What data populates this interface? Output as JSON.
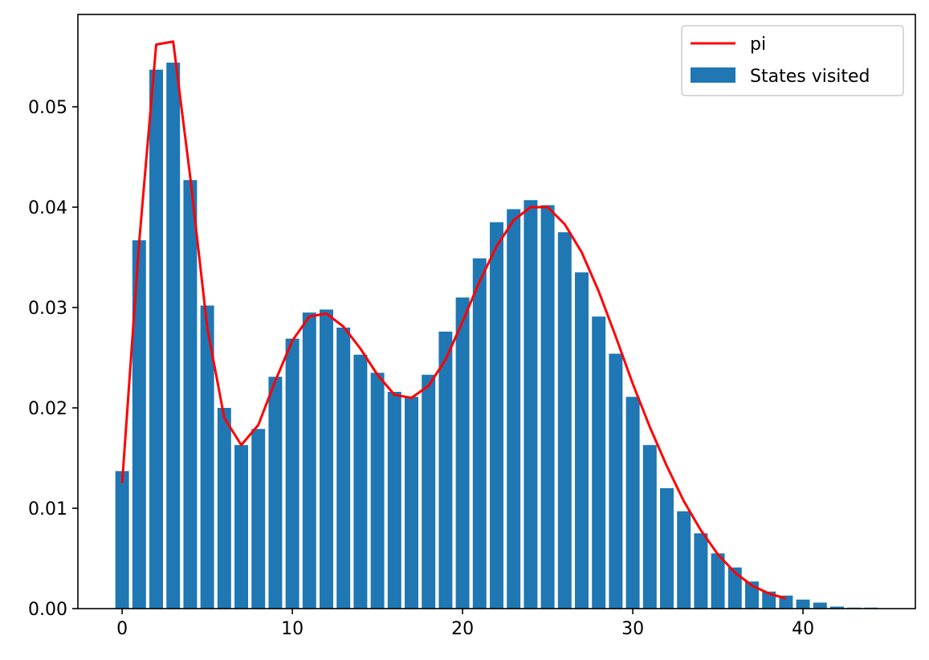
{
  "chart_data": {
    "type": "bar",
    "title": "",
    "xlabel": "",
    "ylabel": "",
    "xlim": [
      -2.6,
      46.6
    ],
    "ylim": [
      0,
      0.0592
    ],
    "x_ticks": [
      0,
      10,
      20,
      30,
      40
    ],
    "x_tick_labels": [
      "0",
      "10",
      "20",
      "30",
      "40"
    ],
    "y_ticks": [
      0,
      0.01,
      0.02,
      0.03,
      0.04,
      0.05
    ],
    "y_tick_labels": [
      "0.00",
      "0.01",
      "0.02",
      "0.03",
      "0.04",
      "0.05"
    ],
    "grid": false,
    "legend_position": "top-right",
    "series": [
      {
        "name": "pi",
        "kind": "line",
        "color": "#ff0000",
        "x": [
          0,
          1,
          2,
          3,
          4,
          5,
          6,
          7,
          8,
          9,
          10,
          11,
          12,
          13,
          14,
          15,
          16,
          17,
          18,
          19,
          20,
          21,
          22,
          23,
          24,
          25,
          26,
          27,
          28,
          29,
          30,
          31,
          32,
          33,
          34,
          35,
          36,
          37,
          38,
          39
        ],
        "values": [
          0.0125,
          0.0365,
          0.0562,
          0.0565,
          0.043,
          0.028,
          0.019,
          0.0163,
          0.0183,
          0.0227,
          0.0267,
          0.0291,
          0.0294,
          0.0281,
          0.0259,
          0.0233,
          0.0213,
          0.021,
          0.0222,
          0.0248,
          0.0286,
          0.0326,
          0.0361,
          0.0387,
          0.04,
          0.04,
          0.0383,
          0.0355,
          0.0316,
          0.0271,
          0.0224,
          0.0181,
          0.0142,
          0.0107,
          0.0078,
          0.0054,
          0.0036,
          0.0023,
          0.0015,
          0.001
        ]
      },
      {
        "name": "States visited",
        "kind": "bar",
        "color": "#1f77b4",
        "x": [
          0,
          1,
          2,
          3,
          4,
          5,
          6,
          7,
          8,
          9,
          10,
          11,
          12,
          13,
          14,
          15,
          16,
          17,
          18,
          19,
          20,
          21,
          22,
          23,
          24,
          25,
          26,
          27,
          28,
          29,
          30,
          31,
          32,
          33,
          34,
          35,
          36,
          37,
          38,
          39,
          40,
          41,
          42,
          43,
          44
        ],
        "values": [
          0.0137,
          0.0367,
          0.0537,
          0.0544,
          0.0427,
          0.0302,
          0.02,
          0.0163,
          0.0179,
          0.0231,
          0.0269,
          0.0295,
          0.0298,
          0.028,
          0.0253,
          0.0235,
          0.0216,
          0.0211,
          0.0233,
          0.0276,
          0.031,
          0.0349,
          0.0385,
          0.0398,
          0.0407,
          0.0402,
          0.0375,
          0.0335,
          0.0291,
          0.0254,
          0.0211,
          0.0163,
          0.012,
          0.0097,
          0.0075,
          0.0055,
          0.0041,
          0.0027,
          0.0017,
          0.0013,
          0.0009,
          0.0006,
          0.0002,
          0.0001,
          0.0001
        ]
      }
    ]
  }
}
